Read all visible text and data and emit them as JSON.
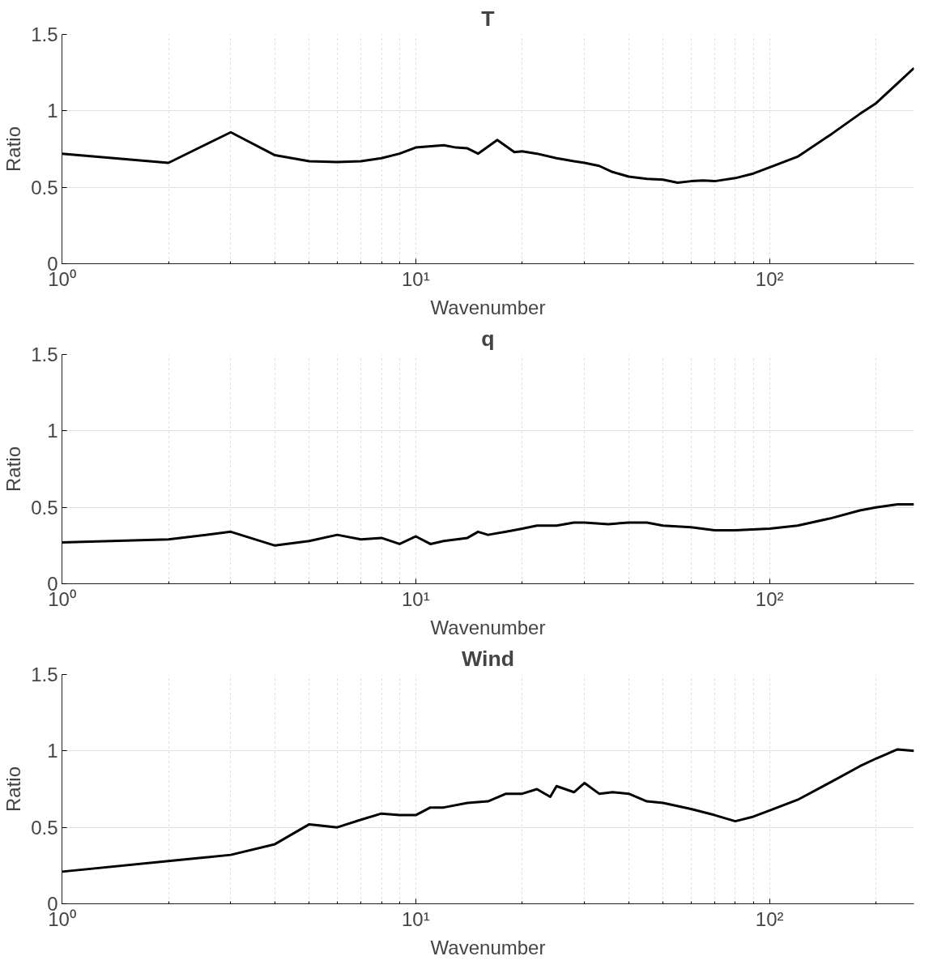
{
  "chart_data": [
    {
      "type": "line",
      "title": "T",
      "xlabel": "Wavenumber",
      "ylabel": "Ratio",
      "log": "x",
      "grid": true,
      "line_style": "solid",
      "marker": "none",
      "xlim": [
        1,
        256
      ],
      "ylim": [
        0,
        1.5
      ],
      "xticks": [
        {
          "value": 1,
          "label": "10⁰"
        },
        {
          "value": 2,
          "label": null
        },
        {
          "value": 3,
          "label": null
        },
        {
          "value": 4,
          "label": null
        },
        {
          "value": 5,
          "label": null
        },
        {
          "value": 6,
          "label": null
        },
        {
          "value": 7,
          "label": null
        },
        {
          "value": 8,
          "label": null
        },
        {
          "value": 9,
          "label": null
        },
        {
          "value": 10,
          "label": "10¹"
        },
        {
          "value": 20,
          "label": null
        },
        {
          "value": 30,
          "label": null
        },
        {
          "value": 40,
          "label": null
        },
        {
          "value": 50,
          "label": null
        },
        {
          "value": 60,
          "label": null
        },
        {
          "value": 70,
          "label": null
        },
        {
          "value": 80,
          "label": null
        },
        {
          "value": 90,
          "label": null
        },
        {
          "value": 100,
          "label": "10²"
        },
        {
          "value": 200,
          "label": null
        }
      ],
      "yticks": [
        0,
        0.5,
        1,
        1.5
      ],
      "x": [
        1,
        2,
        3,
        4,
        5,
        6,
        7,
        8,
        9,
        10,
        12,
        13,
        14,
        15,
        17,
        19,
        20,
        22,
        25,
        28,
        30,
        33,
        36,
        40,
        45,
        50,
        55,
        60,
        65,
        70,
        80,
        90,
        100,
        120,
        150,
        180,
        200,
        230,
        256
      ],
      "series": [
        {
          "color": "#000000",
          "values": [
            0.72,
            0.66,
            0.86,
            0.71,
            0.67,
            0.665,
            0.67,
            0.69,
            0.72,
            0.76,
            0.775,
            0.76,
            0.755,
            0.72,
            0.81,
            0.73,
            0.735,
            0.72,
            0.69,
            0.67,
            0.66,
            0.64,
            0.6,
            0.57,
            0.555,
            0.55,
            0.53,
            0.54,
            0.545,
            0.54,
            0.56,
            0.59,
            0.63,
            0.7,
            0.85,
            0.98,
            1.05,
            1.18,
            1.28
          ]
        }
      ]
    },
    {
      "type": "line",
      "title": "q",
      "xlabel": "Wavenumber",
      "ylabel": "Ratio",
      "log": "x",
      "grid": true,
      "line_style": "solid",
      "marker": "none",
      "xlim": [
        1,
        256
      ],
      "ylim": [
        0,
        1.5
      ],
      "xticks": [
        {
          "value": 1,
          "label": "10⁰"
        },
        {
          "value": 2,
          "label": null
        },
        {
          "value": 3,
          "label": null
        },
        {
          "value": 4,
          "label": null
        },
        {
          "value": 5,
          "label": null
        },
        {
          "value": 6,
          "label": null
        },
        {
          "value": 7,
          "label": null
        },
        {
          "value": 8,
          "label": null
        },
        {
          "value": 9,
          "label": null
        },
        {
          "value": 10,
          "label": "10¹"
        },
        {
          "value": 20,
          "label": null
        },
        {
          "value": 30,
          "label": null
        },
        {
          "value": 40,
          "label": null
        },
        {
          "value": 50,
          "label": null
        },
        {
          "value": 60,
          "label": null
        },
        {
          "value": 70,
          "label": null
        },
        {
          "value": 80,
          "label": null
        },
        {
          "value": 90,
          "label": null
        },
        {
          "value": 100,
          "label": "10²"
        },
        {
          "value": 200,
          "label": null
        }
      ],
      "yticks": [
        0,
        0.5,
        1,
        1.5
      ],
      "x": [
        1,
        2,
        3,
        4,
        5,
        6,
        7,
        8,
        9,
        10,
        11,
        12,
        14,
        15,
        16,
        18,
        20,
        22,
        25,
        28,
        30,
        35,
        40,
        45,
        50,
        60,
        70,
        80,
        100,
        120,
        150,
        180,
        200,
        230,
        256
      ],
      "series": [
        {
          "color": "#000000",
          "values": [
            0.27,
            0.29,
            0.34,
            0.25,
            0.28,
            0.32,
            0.29,
            0.3,
            0.26,
            0.31,
            0.26,
            0.28,
            0.3,
            0.34,
            0.32,
            0.34,
            0.36,
            0.38,
            0.38,
            0.4,
            0.4,
            0.39,
            0.4,
            0.4,
            0.38,
            0.37,
            0.35,
            0.35,
            0.36,
            0.38,
            0.43,
            0.48,
            0.5,
            0.52,
            0.52
          ]
        }
      ]
    },
    {
      "type": "line",
      "title": "Wind",
      "xlabel": "Wavenumber",
      "ylabel": "Ratio",
      "log": "x",
      "grid": true,
      "line_style": "solid",
      "marker": "none",
      "xlim": [
        1,
        256
      ],
      "ylim": [
        0,
        1.5
      ],
      "xticks": [
        {
          "value": 1,
          "label": "10⁰"
        },
        {
          "value": 2,
          "label": null
        },
        {
          "value": 3,
          "label": null
        },
        {
          "value": 4,
          "label": null
        },
        {
          "value": 5,
          "label": null
        },
        {
          "value": 6,
          "label": null
        },
        {
          "value": 7,
          "label": null
        },
        {
          "value": 8,
          "label": null
        },
        {
          "value": 9,
          "label": null
        },
        {
          "value": 10,
          "label": "10¹"
        },
        {
          "value": 20,
          "label": null
        },
        {
          "value": 30,
          "label": null
        },
        {
          "value": 40,
          "label": null
        },
        {
          "value": 50,
          "label": null
        },
        {
          "value": 60,
          "label": null
        },
        {
          "value": 70,
          "label": null
        },
        {
          "value": 80,
          "label": null
        },
        {
          "value": 90,
          "label": null
        },
        {
          "value": 100,
          "label": "10²"
        },
        {
          "value": 200,
          "label": null
        }
      ],
      "yticks": [
        0,
        0.5,
        1,
        1.5
      ],
      "x": [
        1,
        2,
        3,
        4,
        5,
        6,
        7,
        8,
        9,
        10,
        11,
        12,
        14,
        16,
        18,
        20,
        22,
        24,
        25,
        28,
        30,
        33,
        36,
        40,
        45,
        50,
        60,
        70,
        80,
        90,
        100,
        120,
        150,
        180,
        200,
        230,
        256
      ],
      "series": [
        {
          "color": "#000000",
          "values": [
            0.21,
            0.28,
            0.32,
            0.39,
            0.52,
            0.5,
            0.55,
            0.59,
            0.58,
            0.58,
            0.63,
            0.63,
            0.66,
            0.67,
            0.72,
            0.72,
            0.75,
            0.7,
            0.77,
            0.73,
            0.79,
            0.72,
            0.73,
            0.72,
            0.67,
            0.66,
            0.62,
            0.58,
            0.54,
            0.57,
            0.61,
            0.68,
            0.8,
            0.9,
            0.95,
            1.01,
            1.0
          ]
        }
      ]
    }
  ]
}
